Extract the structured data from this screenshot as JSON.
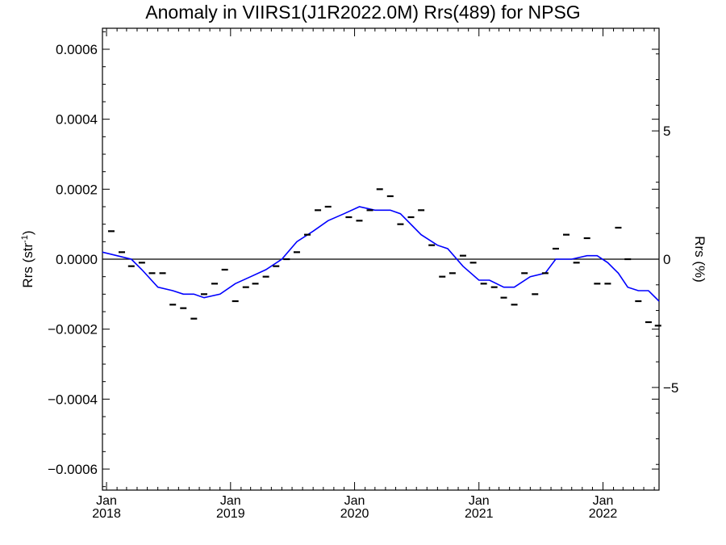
{
  "chart_data": {
    "type": "scatter",
    "title": "Anomaly in VIIRS1(J1R2022.0M) Rrs(489) for NPSG",
    "ylabel": "Rrs (str",
    "ylabel_sup": "-1",
    "ylabel_close": ")",
    "y2label": "Rrs (%)",
    "xlim": [
      "2017-12-20",
      "2022-06-15"
    ],
    "ylim": [
      -0.00066,
      0.00066
    ],
    "y2lim": [
      -9.0,
      9.0
    ],
    "yticks": [
      -0.0006,
      -0.0004,
      -0.0002,
      0.0,
      0.0002,
      0.0004,
      0.0006
    ],
    "ytick_labels": [
      "−0.0006",
      "−0.0004",
      "−0.0002",
      "0.0000",
      "0.0002",
      "0.0004",
      "0.0006"
    ],
    "y2ticks": [
      -5,
      0,
      5
    ],
    "y2tick_labels": [
      "−5",
      "0",
      "5"
    ],
    "xticks": [
      {
        "date": "2018-01-01",
        "month": "Jan",
        "year": "2018"
      },
      {
        "date": "2019-01-01",
        "month": "Jan",
        "year": "2019"
      },
      {
        "date": "2020-01-01",
        "month": "Jan",
        "year": "2020"
      },
      {
        "date": "2021-01-01",
        "month": "Jan",
        "year": "2021"
      },
      {
        "date": "2022-01-01",
        "month": "Jan",
        "year": "2022"
      }
    ],
    "zero_line": 0,
    "grid": false,
    "series": [
      {
        "kind": "monthly_anomaly_markers",
        "color": "#000000",
        "points": [
          {
            "x": "2018-01-15",
            "y": 8e-05
          },
          {
            "x": "2018-02-15",
            "y": 2e-05
          },
          {
            "x": "2018-03-15",
            "y": -2e-05
          },
          {
            "x": "2018-04-15",
            "y": -1e-05
          },
          {
            "x": "2018-05-15",
            "y": -4e-05
          },
          {
            "x": "2018-06-15",
            "y": -4e-05
          },
          {
            "x": "2018-07-15",
            "y": -0.00013
          },
          {
            "x": "2018-08-15",
            "y": -0.00014
          },
          {
            "x": "2018-09-15",
            "y": -0.00017
          },
          {
            "x": "2018-10-15",
            "y": -0.0001
          },
          {
            "x": "2018-11-15",
            "y": -7e-05
          },
          {
            "x": "2018-12-15",
            "y": -3e-05
          },
          {
            "x": "2019-01-15",
            "y": -0.00012
          },
          {
            "x": "2019-02-15",
            "y": -8e-05
          },
          {
            "x": "2019-03-15",
            "y": -7e-05
          },
          {
            "x": "2019-04-15",
            "y": -5e-05
          },
          {
            "x": "2019-05-15",
            "y": -2e-05
          },
          {
            "x": "2019-06-15",
            "y": 0.0
          },
          {
            "x": "2019-07-15",
            "y": 2e-05
          },
          {
            "x": "2019-08-15",
            "y": 7e-05
          },
          {
            "x": "2019-09-15",
            "y": 0.00014
          },
          {
            "x": "2019-10-15",
            "y": 0.00015
          },
          {
            "x": "2019-12-15",
            "y": 0.00012
          },
          {
            "x": "2020-01-15",
            "y": 0.00011
          },
          {
            "x": "2020-02-15",
            "y": 0.00014
          },
          {
            "x": "2020-03-15",
            "y": 0.0002
          },
          {
            "x": "2020-04-15",
            "y": 0.00018
          },
          {
            "x": "2020-05-15",
            "y": 0.0001
          },
          {
            "x": "2020-06-15",
            "y": 0.00012
          },
          {
            "x": "2020-07-15",
            "y": 0.00014
          },
          {
            "x": "2020-08-15",
            "y": 4e-05
          },
          {
            "x": "2020-09-15",
            "y": -5e-05
          },
          {
            "x": "2020-10-15",
            "y": -4e-05
          },
          {
            "x": "2020-11-15",
            "y": 1e-05
          },
          {
            "x": "2020-12-15",
            "y": -1e-05
          },
          {
            "x": "2021-01-15",
            "y": -7e-05
          },
          {
            "x": "2021-02-15",
            "y": -8e-05
          },
          {
            "x": "2021-03-15",
            "y": -0.00011
          },
          {
            "x": "2021-04-15",
            "y": -0.00013
          },
          {
            "x": "2021-05-15",
            "y": -4e-05
          },
          {
            "x": "2021-06-15",
            "y": -0.0001
          },
          {
            "x": "2021-07-15",
            "y": -4e-05
          },
          {
            "x": "2021-08-15",
            "y": 3e-05
          },
          {
            "x": "2021-09-15",
            "y": 7e-05
          },
          {
            "x": "2021-10-15",
            "y": -1e-05
          },
          {
            "x": "2021-11-15",
            "y": 6e-05
          },
          {
            "x": "2021-12-15",
            "y": -7e-05
          },
          {
            "x": "2022-01-15",
            "y": -7e-05
          },
          {
            "x": "2022-02-15",
            "y": 9e-05
          },
          {
            "x": "2022-03-15",
            "y": 0.0
          },
          {
            "x": "2022-04-15",
            "y": -0.00012
          },
          {
            "x": "2022-05-15",
            "y": -0.00018
          },
          {
            "x": "2022-06-12",
            "y": -0.00019
          }
        ]
      },
      {
        "kind": "smoothed_line",
        "color": "#0000ff",
        "points": [
          {
            "x": "2017-12-20",
            "y": 2e-05
          },
          {
            "x": "2018-02-01",
            "y": 1e-05
          },
          {
            "x": "2018-03-15",
            "y": 0.0
          },
          {
            "x": "2018-04-15",
            "y": -3e-05
          },
          {
            "x": "2018-06-01",
            "y": -8e-05
          },
          {
            "x": "2018-07-15",
            "y": -9e-05
          },
          {
            "x": "2018-08-15",
            "y": -0.0001
          },
          {
            "x": "2018-09-15",
            "y": -0.0001
          },
          {
            "x": "2018-10-15",
            "y": -0.00011
          },
          {
            "x": "2018-12-01",
            "y": -0.0001
          },
          {
            "x": "2019-01-15",
            "y": -7e-05
          },
          {
            "x": "2019-03-01",
            "y": -5e-05
          },
          {
            "x": "2019-04-15",
            "y": -3e-05
          },
          {
            "x": "2019-06-01",
            "y": 0.0
          },
          {
            "x": "2019-07-15",
            "y": 5e-05
          },
          {
            "x": "2019-09-01",
            "y": 8e-05
          },
          {
            "x": "2019-10-15",
            "y": 0.00011
          },
          {
            "x": "2019-12-01",
            "y": 0.00013
          },
          {
            "x": "2020-01-15",
            "y": 0.00015
          },
          {
            "x": "2020-03-01",
            "y": 0.00014
          },
          {
            "x": "2020-04-15",
            "y": 0.00014
          },
          {
            "x": "2020-05-15",
            "y": 0.00013
          },
          {
            "x": "2020-07-15",
            "y": 7e-05
          },
          {
            "x": "2020-09-01",
            "y": 4e-05
          },
          {
            "x": "2020-10-01",
            "y": 3e-05
          },
          {
            "x": "2020-11-15",
            "y": -2e-05
          },
          {
            "x": "2021-01-01",
            "y": -6e-05
          },
          {
            "x": "2021-02-01",
            "y": -6e-05
          },
          {
            "x": "2021-03-15",
            "y": -8e-05
          },
          {
            "x": "2021-04-15",
            "y": -8e-05
          },
          {
            "x": "2021-06-01",
            "y": -5e-05
          },
          {
            "x": "2021-07-15",
            "y": -4e-05
          },
          {
            "x": "2021-08-15",
            "y": 0.0
          },
          {
            "x": "2021-10-01",
            "y": 0.0
          },
          {
            "x": "2021-11-15",
            "y": 1e-05
          },
          {
            "x": "2021-12-15",
            "y": 1e-05
          },
          {
            "x": "2022-01-15",
            "y": -1e-05
          },
          {
            "x": "2022-02-15",
            "y": -4e-05
          },
          {
            "x": "2022-03-15",
            "y": -8e-05
          },
          {
            "x": "2022-04-15",
            "y": -9e-05
          },
          {
            "x": "2022-05-15",
            "y": -9e-05
          },
          {
            "x": "2022-06-15",
            "y": -0.00012
          }
        ]
      }
    ]
  }
}
